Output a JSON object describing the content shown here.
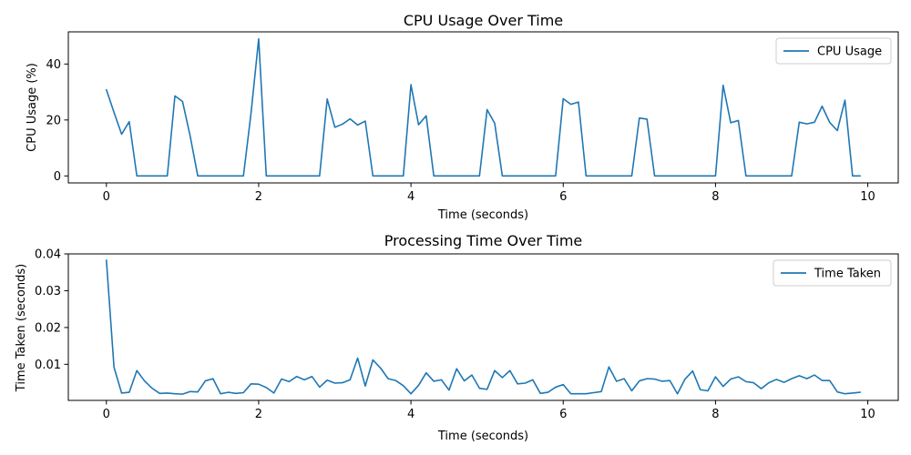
{
  "chart_data": [
    {
      "type": "line",
      "title": "CPU Usage Over Time",
      "xlabel": "Time (seconds)",
      "ylabel": "CPU Usage (%)",
      "xlim": [
        -0.5,
        10.4
      ],
      "ylim": [
        -2.5,
        51.5
      ],
      "xticks": [
        0,
        2,
        4,
        6,
        8,
        10
      ],
      "yticks": [
        0,
        20,
        40
      ],
      "grid": false,
      "legend_position": "top-right",
      "series": [
        {
          "name": "CPU Usage",
          "color": "#1f77b4",
          "x": [
            0.0,
            0.1,
            0.2,
            0.3,
            0.4,
            0.5,
            0.6,
            0.7,
            0.8,
            0.9,
            1.0,
            1.1,
            1.2,
            1.3,
            1.4,
            1.5,
            1.6,
            1.7,
            1.8,
            1.9,
            2.0,
            2.1,
            2.2,
            2.3,
            2.4,
            2.5,
            2.6,
            2.7,
            2.8,
            2.9,
            3.0,
            3.1,
            3.2,
            3.3,
            3.4,
            3.5,
            3.6,
            3.7,
            3.8,
            3.9,
            4.0,
            4.1,
            4.2,
            4.3,
            4.4,
            4.5,
            4.6,
            4.7,
            4.8,
            4.9,
            5.0,
            5.1,
            5.2,
            5.3,
            5.4,
            5.5,
            5.6,
            5.7,
            5.8,
            5.9,
            6.0,
            6.1,
            6.2,
            6.3,
            6.4,
            6.5,
            6.6,
            6.7,
            6.8,
            6.9,
            7.0,
            7.1,
            7.2,
            7.3,
            7.4,
            7.5,
            7.6,
            7.7,
            7.8,
            7.9,
            8.0,
            8.1,
            8.2,
            8.3,
            8.4,
            8.5,
            8.6,
            8.7,
            8.8,
            8.9,
            9.0,
            9.1,
            9.2,
            9.3,
            9.4,
            9.5,
            9.6,
            9.7,
            9.8,
            9.9
          ],
          "y": [
            30.8,
            22.7,
            14.9,
            19.4,
            0,
            0,
            0,
            0,
            0,
            28.6,
            26.6,
            14.3,
            0,
            0,
            0,
            0,
            0,
            0,
            0,
            22.5,
            49.0,
            0,
            0,
            0,
            0,
            0,
            0,
            0,
            0,
            27.5,
            17.4,
            18.5,
            20.4,
            18.2,
            19.6,
            0,
            0,
            0,
            0,
            0,
            32.6,
            18.3,
            21.5,
            0,
            0,
            0,
            0,
            0,
            0,
            0,
            23.7,
            18.8,
            0,
            0,
            0,
            0,
            0,
            0,
            0,
            0,
            27.6,
            25.6,
            26.4,
            0,
            0,
            0,
            0,
            0,
            0,
            0,
            20.7,
            20.3,
            0,
            0,
            0,
            0,
            0,
            0,
            0,
            0,
            0,
            32.4,
            19.0,
            19.8,
            0,
            0,
            0,
            0,
            0,
            0,
            0,
            19.2,
            18.6,
            19.2,
            24.9,
            19.1,
            16.2,
            27.1,
            0,
            0
          ]
        }
      ]
    },
    {
      "type": "line",
      "title": "Processing Time Over Time",
      "xlabel": "Time (seconds)",
      "ylabel": "Time Taken (seconds)",
      "xlim": [
        -0.5,
        10.4
      ],
      "ylim": [
        0.0002,
        0.04
      ],
      "xticks": [
        0,
        2,
        4,
        6,
        8,
        10
      ],
      "yticks": [
        0.01,
        0.02,
        0.03,
        0.04
      ],
      "ytick_labels": [
        "0.01",
        "0.02",
        "0.03",
        "0.04"
      ],
      "grid": false,
      "legend_position": "top-right",
      "series": [
        {
          "name": "Time Taken",
          "color": "#1f77b4",
          "x": [
            0.0,
            0.1,
            0.2,
            0.3,
            0.4,
            0.5,
            0.6,
            0.7,
            0.8,
            0.9,
            1.0,
            1.1,
            1.2,
            1.3,
            1.4,
            1.5,
            1.6,
            1.7,
            1.8,
            1.9,
            2.0,
            2.1,
            2.2,
            2.3,
            2.4,
            2.5,
            2.6,
            2.7,
            2.8,
            2.9,
            3.0,
            3.1,
            3.2,
            3.3,
            3.4,
            3.5,
            3.6,
            3.7,
            3.8,
            3.9,
            4.0,
            4.1,
            4.2,
            4.3,
            4.4,
            4.5,
            4.6,
            4.7,
            4.8,
            4.9,
            5.0,
            5.1,
            5.2,
            5.3,
            5.4,
            5.5,
            5.6,
            5.7,
            5.8,
            5.9,
            6.0,
            6.1,
            6.2,
            6.3,
            6.4,
            6.5,
            6.6,
            6.7,
            6.8,
            6.9,
            7.0,
            7.1,
            7.2,
            7.3,
            7.4,
            7.5,
            7.6,
            7.7,
            7.8,
            7.9,
            8.0,
            8.1,
            8.2,
            8.3,
            8.4,
            8.5,
            8.6,
            8.7,
            8.8,
            8.9,
            9.0,
            9.1,
            9.2,
            9.3,
            9.4,
            9.5,
            9.6,
            9.7,
            9.8,
            9.9
          ],
          "y": [
            0.0383,
            0.0092,
            0.0022,
            0.0024,
            0.0083,
            0.0055,
            0.0035,
            0.0021,
            0.0022,
            0.002,
            0.0019,
            0.0026,
            0.0025,
            0.0055,
            0.0061,
            0.002,
            0.0024,
            0.0021,
            0.0023,
            0.0047,
            0.0046,
            0.0037,
            0.0022,
            0.006,
            0.0053,
            0.0067,
            0.0058,
            0.0067,
            0.0038,
            0.0057,
            0.0049,
            0.005,
            0.0058,
            0.0117,
            0.0041,
            0.0112,
            0.009,
            0.0061,
            0.0056,
            0.0042,
            0.002,
            0.0043,
            0.0077,
            0.0054,
            0.0058,
            0.003,
            0.0088,
            0.0055,
            0.0071,
            0.0035,
            0.0032,
            0.0083,
            0.0064,
            0.0083,
            0.0047,
            0.0049,
            0.0058,
            0.0021,
            0.0024,
            0.0038,
            0.0045,
            0.002,
            0.002,
            0.002,
            0.0023,
            0.0026,
            0.0093,
            0.0054,
            0.0061,
            0.0028,
            0.0055,
            0.0061,
            0.006,
            0.0054,
            0.0056,
            0.002,
            0.006,
            0.0082,
            0.0031,
            0.0028,
            0.0066,
            0.004,
            0.006,
            0.0066,
            0.0053,
            0.005,
            0.0034,
            0.005,
            0.0059,
            0.0051,
            0.0061,
            0.0069,
            0.0061,
            0.0071,
            0.0056,
            0.0056,
            0.0025,
            0.002,
            0.0022,
            0.0024
          ]
        }
      ]
    }
  ]
}
